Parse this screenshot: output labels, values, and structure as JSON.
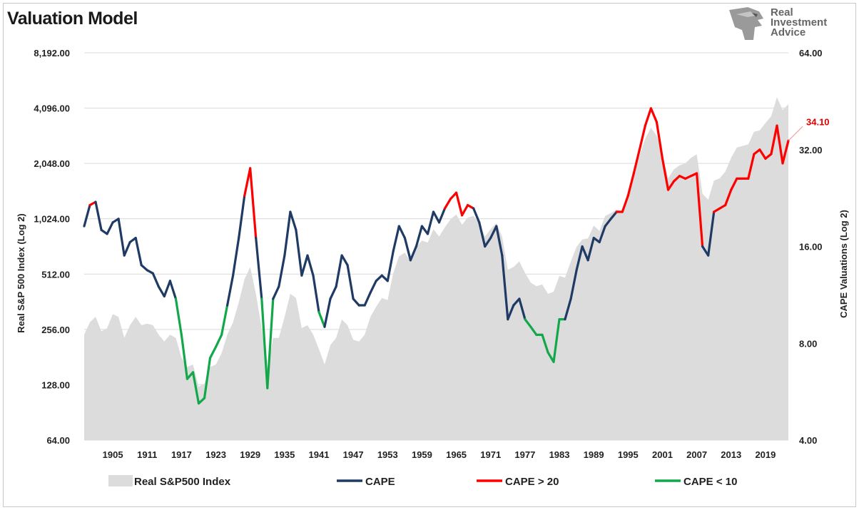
{
  "title": "Valuation Model",
  "logo": {
    "line1": "Real",
    "line2": "Investment",
    "line3": "Advice"
  },
  "colors": {
    "index_fill": "#dcdcdc",
    "cape": "#1f3a64",
    "cape_high": "#ff0000",
    "cape_low": "#12a84a",
    "annotation": "#e00000"
  },
  "chart_data": {
    "type": "area+line",
    "xlabel": "",
    "left_axis": {
      "label": "Real S&P 500 Index (Log 2)",
      "scale": "log2",
      "ticks": [
        "64.00",
        "128.00",
        "256.00",
        "512.00",
        "1,024.00",
        "2,048.00",
        "4,096.00",
        "8,192.00"
      ],
      "range": [
        64,
        8192
      ]
    },
    "right_axis": {
      "label": "CAPE Valuations (Log 2)",
      "scale": "log2",
      "ticks": [
        "4.00",
        "8.00",
        "16.00",
        "32.00",
        "64.00"
      ],
      "range": [
        4,
        64
      ]
    },
    "x_range": [
      1900,
      2023
    ],
    "x_ticks": [
      "1905",
      "1911",
      "1917",
      "1923",
      "1929",
      "1935",
      "1941",
      "1947",
      "1953",
      "1959",
      "1965",
      "1971",
      "1977",
      "1983",
      "1989",
      "1995",
      "2001",
      "2007",
      "2013",
      "2019"
    ],
    "legend": [
      {
        "name": "Real S&P500 Index",
        "kind": "area"
      },
      {
        "name": "CAPE",
        "kind": "line"
      },
      {
        "name": "CAPE > 20",
        "kind": "line"
      },
      {
        "name": "CAPE < 10",
        "kind": "line"
      }
    ],
    "annotation": {
      "text": "34.10",
      "x": 2023,
      "y": 34.1
    },
    "thresholds": {
      "high": 20,
      "low": 10
    },
    "series": [
      {
        "name": "Real S&P500 Index",
        "points": [
          [
            1900,
            240
          ],
          [
            1901,
            280
          ],
          [
            1902,
            300
          ],
          [
            1903,
            250
          ],
          [
            1904,
            260
          ],
          [
            1905,
            310
          ],
          [
            1906,
            300
          ],
          [
            1907,
            230
          ],
          [
            1908,
            270
          ],
          [
            1909,
            300
          ],
          [
            1910,
            270
          ],
          [
            1911,
            275
          ],
          [
            1912,
            270
          ],
          [
            1913,
            240
          ],
          [
            1914,
            220
          ],
          [
            1915,
            240
          ],
          [
            1916,
            230
          ],
          [
            1917,
            180
          ],
          [
            1918,
            160
          ],
          [
            1919,
            165
          ],
          [
            1920,
            125
          ],
          [
            1921,
            130
          ],
          [
            1922,
            160
          ],
          [
            1923,
            165
          ],
          [
            1924,
            190
          ],
          [
            1925,
            240
          ],
          [
            1926,
            280
          ],
          [
            1927,
            360
          ],
          [
            1928,
            480
          ],
          [
            1929,
            560
          ],
          [
            1930,
            400
          ],
          [
            1931,
            260
          ],
          [
            1932,
            150
          ],
          [
            1933,
            230
          ],
          [
            1934,
            230
          ],
          [
            1935,
            300
          ],
          [
            1936,
            400
          ],
          [
            1937,
            380
          ],
          [
            1938,
            260
          ],
          [
            1939,
            270
          ],
          [
            1940,
            240
          ],
          [
            1941,
            200
          ],
          [
            1942,
            165
          ],
          [
            1943,
            210
          ],
          [
            1944,
            230
          ],
          [
            1945,
            290
          ],
          [
            1946,
            270
          ],
          [
            1947,
            225
          ],
          [
            1948,
            220
          ],
          [
            1949,
            240
          ],
          [
            1950,
            300
          ],
          [
            1951,
            340
          ],
          [
            1952,
            380
          ],
          [
            1953,
            370
          ],
          [
            1954,
            520
          ],
          [
            1955,
            640
          ],
          [
            1956,
            670
          ],
          [
            1957,
            600
          ],
          [
            1958,
            720
          ],
          [
            1959,
            780
          ],
          [
            1960,
            760
          ],
          [
            1961,
            900
          ],
          [
            1962,
            820
          ],
          [
            1963,
            920
          ],
          [
            1964,
            1020
          ],
          [
            1965,
            1080
          ],
          [
            1966,
            950
          ],
          [
            1967,
            1040
          ],
          [
            1968,
            1060
          ],
          [
            1969,
            970
          ],
          [
            1970,
            820
          ],
          [
            1971,
            900
          ],
          [
            1972,
            970
          ],
          [
            1973,
            820
          ],
          [
            1974,
            540
          ],
          [
            1975,
            560
          ],
          [
            1976,
            600
          ],
          [
            1977,
            520
          ],
          [
            1978,
            460
          ],
          [
            1979,
            440
          ],
          [
            1980,
            450
          ],
          [
            1981,
            400
          ],
          [
            1982,
            410
          ],
          [
            1983,
            500
          ],
          [
            1984,
            490
          ],
          [
            1985,
            600
          ],
          [
            1986,
            720
          ],
          [
            1987,
            790
          ],
          [
            1988,
            800
          ],
          [
            1989,
            940
          ],
          [
            1990,
            880
          ],
          [
            1991,
            1060
          ],
          [
            1992,
            1100
          ],
          [
            1993,
            1150
          ],
          [
            1994,
            1120
          ],
          [
            1995,
            1450
          ],
          [
            1996,
            1750
          ],
          [
            1997,
            2250
          ],
          [
            1998,
            2800
          ],
          [
            1999,
            3200
          ],
          [
            2000,
            2900
          ],
          [
            2001,
            2300
          ],
          [
            2002,
            1700
          ],
          [
            2003,
            1900
          ],
          [
            2004,
            2000
          ],
          [
            2005,
            2050
          ],
          [
            2006,
            2200
          ],
          [
            2007,
            2300
          ],
          [
            2008,
            1400
          ],
          [
            2009,
            1300
          ],
          [
            2010,
            1650
          ],
          [
            2011,
            1700
          ],
          [
            2012,
            1850
          ],
          [
            2013,
            2200
          ],
          [
            2014,
            2500
          ],
          [
            2015,
            2550
          ],
          [
            2016,
            2600
          ],
          [
            2017,
            3050
          ],
          [
            2018,
            3100
          ],
          [
            2019,
            3400
          ],
          [
            2020,
            3700
          ],
          [
            2021,
            4700
          ],
          [
            2022,
            4000
          ],
          [
            2023,
            4300
          ]
        ]
      },
      {
        "name": "CAPE",
        "points": [
          [
            1900,
            18.5
          ],
          [
            1901,
            21.5
          ],
          [
            1902,
            22
          ],
          [
            1903,
            18
          ],
          [
            1904,
            17.5
          ],
          [
            1905,
            19
          ],
          [
            1906,
            19.5
          ],
          [
            1907,
            15
          ],
          [
            1908,
            16.5
          ],
          [
            1909,
            17
          ],
          [
            1910,
            14
          ],
          [
            1911,
            13.5
          ],
          [
            1912,
            13.2
          ],
          [
            1913,
            12
          ],
          [
            1914,
            11.2
          ],
          [
            1915,
            12.5
          ],
          [
            1916,
            11
          ],
          [
            1917,
            8.5
          ],
          [
            1918,
            6.2
          ],
          [
            1919,
            6.5
          ],
          [
            1920,
            5.2
          ],
          [
            1921,
            5.4
          ],
          [
            1922,
            7.2
          ],
          [
            1923,
            7.8
          ],
          [
            1924,
            8.5
          ],
          [
            1925,
            10.5
          ],
          [
            1926,
            13
          ],
          [
            1927,
            17
          ],
          [
            1928,
            23
          ],
          [
            1929,
            28
          ],
          [
            1930,
            17
          ],
          [
            1931,
            11
          ],
          [
            1932,
            5.8
          ],
          [
            1933,
            11
          ],
          [
            1934,
            12
          ],
          [
            1935,
            15
          ],
          [
            1936,
            20.5
          ],
          [
            1937,
            18
          ],
          [
            1938,
            13
          ],
          [
            1939,
            15
          ],
          [
            1940,
            13
          ],
          [
            1941,
            10
          ],
          [
            1942,
            9
          ],
          [
            1943,
            11
          ],
          [
            1944,
            12
          ],
          [
            1945,
            15
          ],
          [
            1946,
            14
          ],
          [
            1947,
            11
          ],
          [
            1948,
            10.5
          ],
          [
            1949,
            10.5
          ],
          [
            1950,
            11.5
          ],
          [
            1951,
            12.5
          ],
          [
            1952,
            13
          ],
          [
            1953,
            12.5
          ],
          [
            1954,
            15.5
          ],
          [
            1955,
            18.5
          ],
          [
            1956,
            17
          ],
          [
            1957,
            14.5
          ],
          [
            1958,
            16
          ],
          [
            1959,
            18.5
          ],
          [
            1960,
            17.5
          ],
          [
            1961,
            20.5
          ],
          [
            1962,
            19
          ],
          [
            1963,
            21
          ],
          [
            1964,
            22.5
          ],
          [
            1965,
            23.5
          ],
          [
            1966,
            20
          ],
          [
            1967,
            21.5
          ],
          [
            1968,
            21
          ],
          [
            1969,
            19
          ],
          [
            1970,
            16
          ],
          [
            1971,
            17
          ],
          [
            1972,
            18.5
          ],
          [
            1973,
            15
          ],
          [
            1974,
            9.5
          ],
          [
            1975,
            10.5
          ],
          [
            1976,
            11
          ],
          [
            1977,
            9.5
          ],
          [
            1978,
            9
          ],
          [
            1979,
            8.5
          ],
          [
            1980,
            8.5
          ],
          [
            1981,
            7.5
          ],
          [
            1982,
            7
          ],
          [
            1983,
            9.5
          ],
          [
            1984,
            9.5
          ],
          [
            1985,
            11
          ],
          [
            1986,
            13.5
          ],
          [
            1987,
            16
          ],
          [
            1988,
            14.5
          ],
          [
            1989,
            17
          ],
          [
            1990,
            16.5
          ],
          [
            1991,
            18.5
          ],
          [
            1992,
            19.5
          ],
          [
            1993,
            20.5
          ],
          [
            1994,
            20.5
          ],
          [
            1995,
            23
          ],
          [
            1996,
            27
          ],
          [
            1997,
            32
          ],
          [
            1998,
            38
          ],
          [
            1999,
            43
          ],
          [
            2000,
            39
          ],
          [
            2001,
            30
          ],
          [
            2002,
            24
          ],
          [
            2003,
            25.5
          ],
          [
            2004,
            26.5
          ],
          [
            2005,
            26
          ],
          [
            2006,
            26.5
          ],
          [
            2007,
            27
          ],
          [
            2008,
            16
          ],
          [
            2009,
            15
          ],
          [
            2010,
            20.5
          ],
          [
            2011,
            21
          ],
          [
            2012,
            21.5
          ],
          [
            2013,
            24
          ],
          [
            2014,
            26
          ],
          [
            2015,
            26
          ],
          [
            2016,
            26
          ],
          [
            2017,
            31
          ],
          [
            2018,
            32
          ],
          [
            2019,
            30
          ],
          [
            2020,
            31
          ],
          [
            2021,
            38
          ],
          [
            2022,
            29
          ],
          [
            2023,
            34.1
          ]
        ]
      }
    ]
  }
}
